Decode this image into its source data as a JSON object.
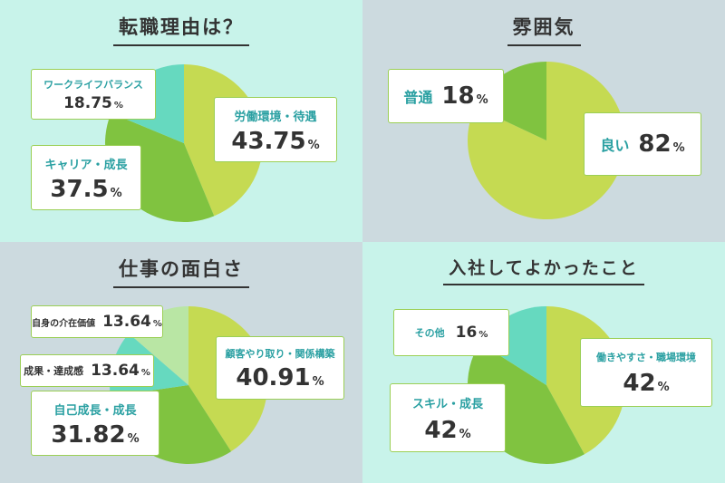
{
  "colors": {
    "panel_mint": "#c8f3ea",
    "panel_gray": "#ccdadf",
    "slice_yellow_green": "#c5da52",
    "slice_green": "#80c340",
    "slice_teal": "#66d9bf",
    "slice_light_green": "#b9e6a4",
    "label_teal": "#2aa0a2",
    "value_dark": "#333333"
  },
  "percent_sign": "%",
  "chart_data": [
    {
      "type": "pie",
      "title": "転職理由は？",
      "slices": [
        {
          "label": "労働環境・待遇",
          "value": 43.75,
          "display": "43.75",
          "color": "#c5da52"
        },
        {
          "label": "キャリア・成長",
          "value": 37.5,
          "display": "37.5",
          "color": "#80c340"
        },
        {
          "label": "ワークライフバランス",
          "value": 18.75,
          "display": "18.75",
          "color": "#66d9bf"
        }
      ]
    },
    {
      "type": "pie",
      "title": "雰囲気",
      "slices": [
        {
          "label": "良い",
          "value": 82,
          "display": "82",
          "color": "#c5da52"
        },
        {
          "label": "普通",
          "value": 18,
          "display": "18",
          "color": "#80c340"
        }
      ]
    },
    {
      "type": "pie",
      "title": "仕事の面白さ",
      "slices": [
        {
          "label": "顧客やり取り・関係構築",
          "value": 40.91,
          "display": "40.91",
          "color": "#c5da52"
        },
        {
          "label": "自己成長・成長",
          "value": 31.82,
          "display": "31.82",
          "color": "#80c340"
        },
        {
          "label": "成果・達成感",
          "value": 13.64,
          "display": "13.64",
          "color": "#66d9bf"
        },
        {
          "label": "自身の介在価値",
          "value": 13.64,
          "display": "13.64",
          "color": "#b9e6a4"
        }
      ]
    },
    {
      "type": "pie",
      "title": "入社してよかったこと",
      "slices": [
        {
          "label": "働きやすさ・職場環境",
          "value": 42,
          "display": "42",
          "color": "#c5da52"
        },
        {
          "label": "スキル・成長",
          "value": 42,
          "display": "42",
          "color": "#80c340"
        },
        {
          "label": "その他",
          "value": 16,
          "display": "16",
          "color": "#66d9bf"
        }
      ]
    }
  ]
}
